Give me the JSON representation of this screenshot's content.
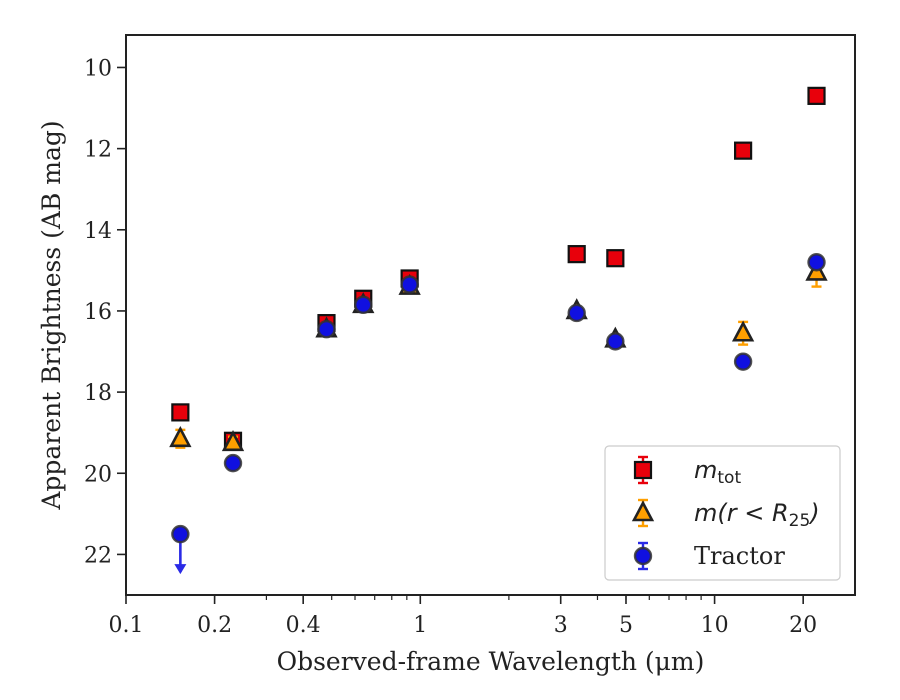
{
  "chart_data": {
    "type": "scatter",
    "title": "",
    "xlabel": "Observed-frame Wavelength (μm)",
    "ylabel": "Apparent Brightness (AB mag)",
    "xscale": "log",
    "xlim": [
      0.1,
      30
    ],
    "ylim": [
      23,
      9.2
    ],
    "y_inverted": true,
    "x_ticks": [
      {
        "value": 0.1,
        "label": "0.1"
      },
      {
        "value": 0.2,
        "label": "0.2"
      },
      {
        "value": 0.4,
        "label": "0.4"
      },
      {
        "value": 1,
        "label": "1"
      },
      {
        "value": 3,
        "label": "3"
      },
      {
        "value": 5,
        "label": "5"
      },
      {
        "value": 10,
        "label": "10"
      },
      {
        "value": 20,
        "label": "20"
      }
    ],
    "y_ticks": [
      {
        "value": 10,
        "label": "10"
      },
      {
        "value": 12,
        "label": "12"
      },
      {
        "value": 14,
        "label": "14"
      },
      {
        "value": 16,
        "label": "16"
      },
      {
        "value": 18,
        "label": "18"
      },
      {
        "value": 20,
        "label": "20"
      },
      {
        "value": 22,
        "label": "22"
      }
    ],
    "legend": {
      "position": "lower-right"
    },
    "series": [
      {
        "key": "mtot",
        "legend_main": "m",
        "legend_sub": "tot",
        "marker": "square",
        "color": "#e8000b",
        "error_color": "#e8000b",
        "points": [
          {
            "x": 0.153,
            "y": 18.5,
            "err": 0.12
          },
          {
            "x": 0.231,
            "y": 19.2,
            "err": 0.12
          },
          {
            "x": 0.48,
            "y": 16.3,
            "err": 0.1
          },
          {
            "x": 0.64,
            "y": 15.7,
            "err": 0.1
          },
          {
            "x": 0.92,
            "y": 15.2,
            "err": 0.1
          },
          {
            "x": 3.4,
            "y": 14.6,
            "err": 0.05
          },
          {
            "x": 4.6,
            "y": 14.7,
            "err": 0.05
          },
          {
            "x": 12.5,
            "y": 12.05,
            "err": 0.05
          },
          {
            "x": 22.2,
            "y": 10.7,
            "err": 0.05
          }
        ]
      },
      {
        "key": "mr25",
        "legend_main": "m(r < R",
        "legend_sub": "25",
        "legend_tail": ")",
        "marker": "triangle",
        "color": "#ff9f00",
        "error_color": "#ff9f00",
        "points": [
          {
            "x": 0.153,
            "y": 19.15,
            "err": 0.22
          },
          {
            "x": 0.231,
            "y": 19.25,
            "err": 0.15
          },
          {
            "x": 0.48,
            "y": 16.45,
            "err": 0.08
          },
          {
            "x": 0.64,
            "y": 15.85,
            "err": 0.08
          },
          {
            "x": 0.92,
            "y": 15.4,
            "err": 0.08
          },
          {
            "x": 3.4,
            "y": 16.0,
            "err": 0.08
          },
          {
            "x": 4.6,
            "y": 16.7,
            "err": 0.08
          },
          {
            "x": 12.5,
            "y": 16.55,
            "err": 0.28
          },
          {
            "x": 22.2,
            "y": 15.05,
            "err": 0.35
          }
        ]
      },
      {
        "key": "tractor",
        "legend_main": "Tractor",
        "marker": "circle",
        "color": "#1010e0",
        "error_color": "#2a2ae6",
        "points": [
          {
            "x": 0.153,
            "y": 21.5,
            "upper_limit": true
          },
          {
            "x": 0.231,
            "y": 19.75,
            "err": 0.05
          },
          {
            "x": 0.48,
            "y": 16.45,
            "err": 0.05
          },
          {
            "x": 0.64,
            "y": 15.85,
            "err": 0.05
          },
          {
            "x": 0.92,
            "y": 15.35,
            "err": 0.05
          },
          {
            "x": 3.4,
            "y": 16.05,
            "err": 0.05
          },
          {
            "x": 4.6,
            "y": 16.75,
            "err": 0.05
          },
          {
            "x": 12.5,
            "y": 17.25,
            "err": 0.05
          },
          {
            "x": 22.2,
            "y": 14.8,
            "err": 0.1
          }
        ]
      }
    ]
  }
}
